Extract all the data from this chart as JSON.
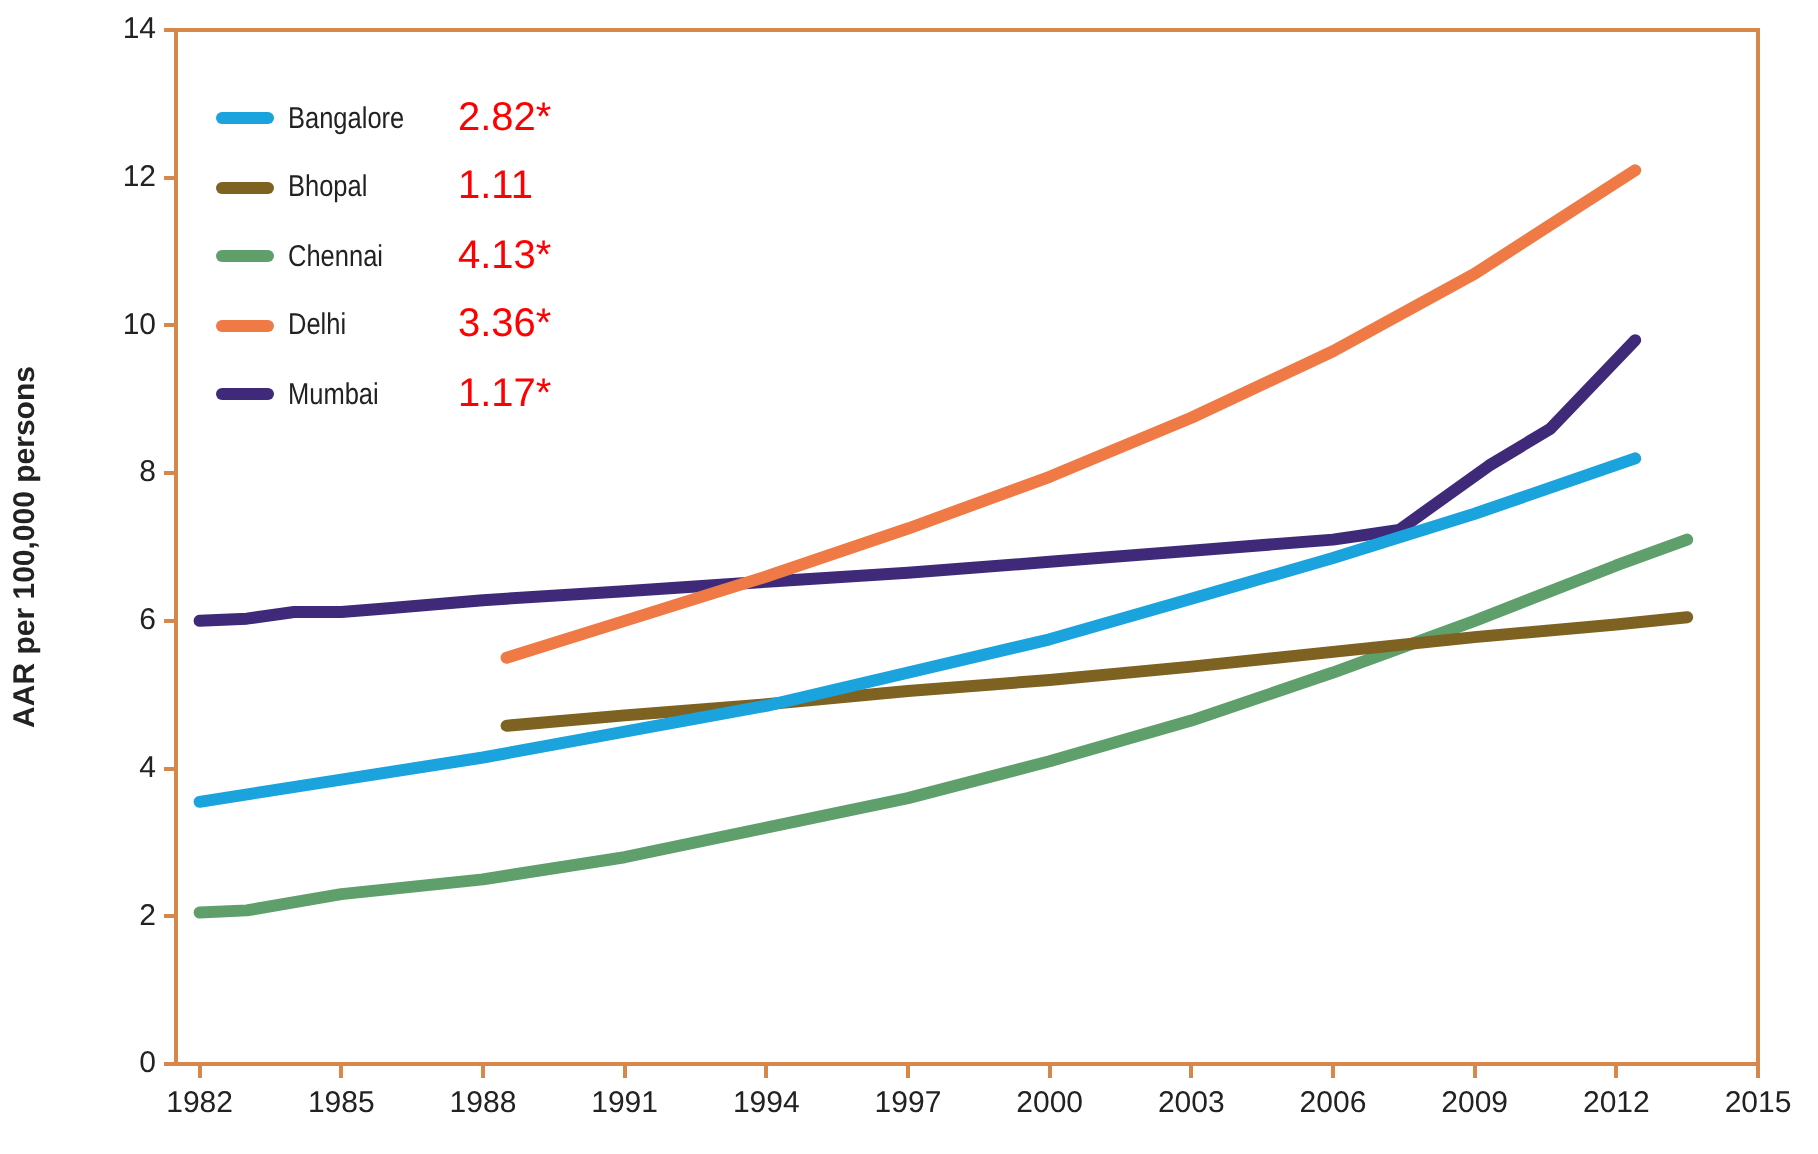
{
  "chart_data": {
    "type": "line",
    "ylabel": "AAR per 100,000 persons",
    "xlim": [
      1981.5,
      2015
    ],
    "xticks": [
      1982,
      1985,
      1988,
      1991,
      1994,
      1997,
      2000,
      2003,
      2006,
      2009,
      2012,
      2015
    ],
    "ylim": [
      0,
      14
    ],
    "yticks": [
      0,
      2,
      4,
      6,
      8,
      10,
      12,
      14
    ],
    "grid": false,
    "legend": "top left",
    "marker": "none",
    "line_style": "solid",
    "series": [
      {
        "name": "Bangalore",
        "color": "#1aa3dc",
        "x": [
          1982,
          1985,
          1988,
          1991,
          1994,
          1997,
          2000,
          2003,
          2006,
          2009,
          2012.4
        ],
        "values": [
          3.55,
          3.85,
          4.15,
          4.5,
          4.85,
          5.3,
          5.75,
          6.3,
          6.85,
          7.45,
          8.2
        ]
      },
      {
        "name": "Bhopal",
        "color": "#7d6221",
        "x": [
          1988.5,
          1991,
          1994,
          1997,
          2000,
          2003,
          2006,
          2009,
          2012,
          2013.5
        ],
        "values": [
          4.58,
          4.72,
          4.87,
          5.05,
          5.2,
          5.38,
          5.58,
          5.78,
          5.95,
          6.05
        ]
      },
      {
        "name": "Chennai",
        "color": "#5f9f6c",
        "x": [
          1982,
          1983,
          1985,
          1988,
          1991,
          1994,
          1997,
          2000,
          2003,
          2006,
          2009,
          2012,
          2013.5
        ],
        "values": [
          2.05,
          2.08,
          2.3,
          2.5,
          2.8,
          3.2,
          3.6,
          4.1,
          4.65,
          5.3,
          6.0,
          6.75,
          7.1
        ]
      },
      {
        "name": "Delhi",
        "color": "#ef7a45",
        "x": [
          1988.5,
          1991,
          1994,
          1997,
          2000,
          2003,
          2006,
          2009,
          2012.4
        ],
        "values": [
          5.5,
          6.0,
          6.6,
          7.25,
          7.95,
          8.75,
          9.65,
          10.7,
          12.1
        ]
      },
      {
        "name": "Mumbai",
        "color": "#3f2a7a",
        "x": [
          1982,
          1983,
          1984,
          1985,
          1986,
          1988,
          1991,
          1994,
          1997,
          2000,
          2003,
          2006,
          2007.4,
          2009.3,
          2010.6,
          2012.4
        ],
        "values": [
          6.0,
          6.03,
          6.12,
          6.12,
          6.17,
          6.28,
          6.4,
          6.53,
          6.65,
          6.8,
          6.95,
          7.1,
          7.23,
          8.1,
          8.6,
          9.8
        ]
      }
    ],
    "annotations": [
      "2.82*",
      "1.11",
      "4.13*",
      "3.36*",
      "1.17*"
    ]
  }
}
